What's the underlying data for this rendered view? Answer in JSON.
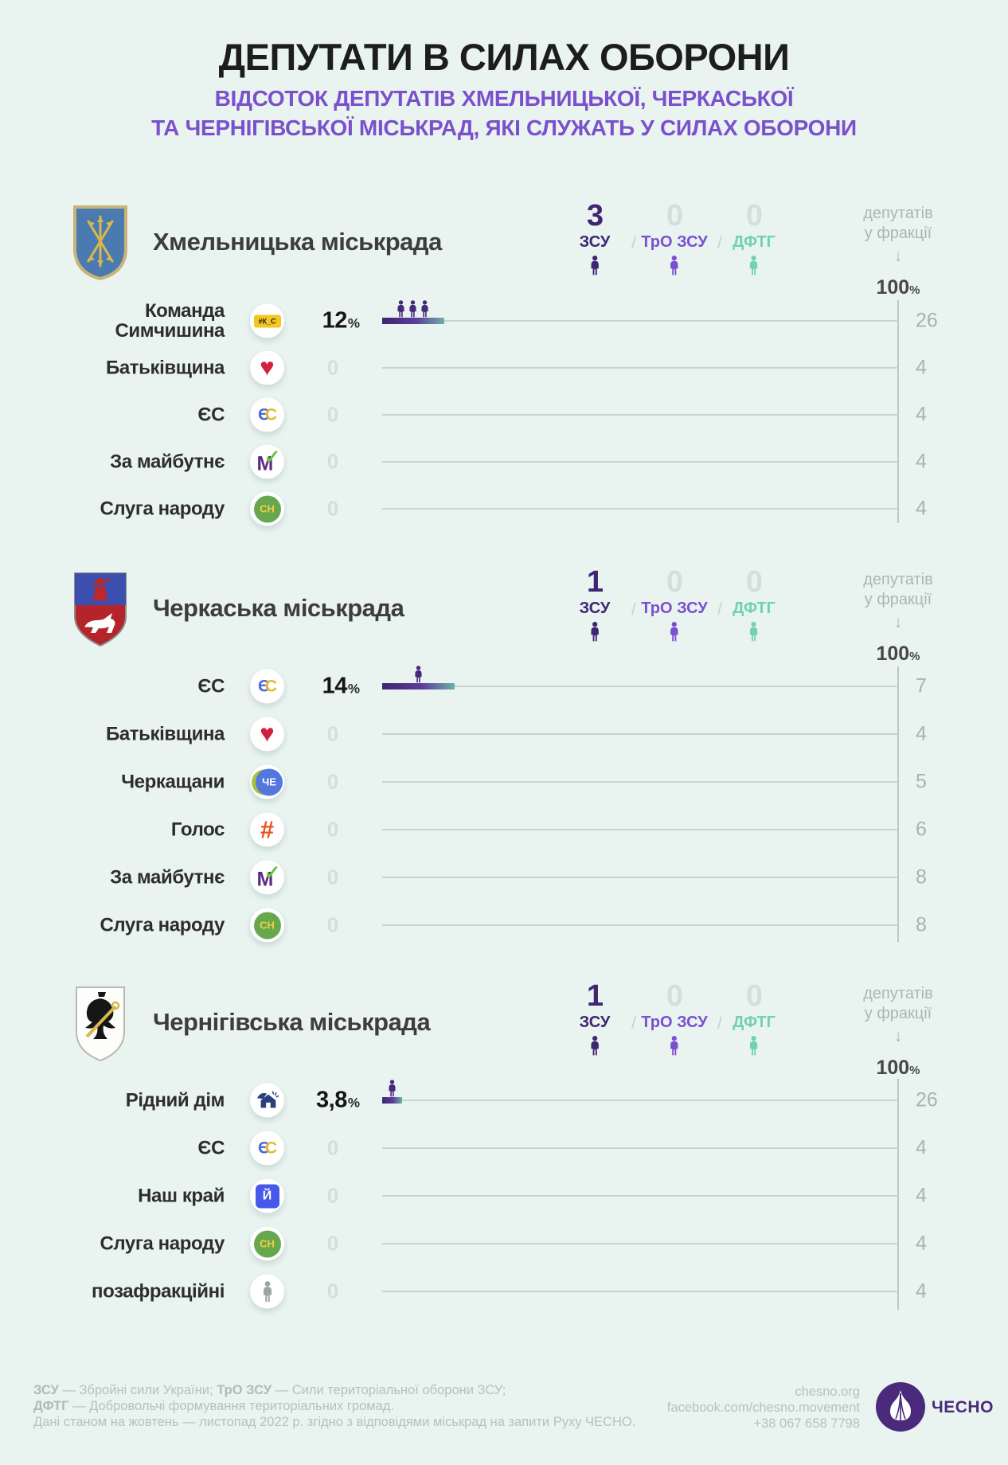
{
  "title": "ДЕПУТАТИ В СИЛАХ ОБОРОНИ",
  "subtitle": {
    "line1": "ВІДСОТОК ДЕПУТАТІВ ХМЕЛЬНИЦЬКОЇ, ЧЕРКАСЬКОЇ",
    "line2": "ТА ЧЕРНІГІВСЬКОЇ МІСЬКРАД, ЯКІ СЛУЖАТЬ У СИЛАХ ОБОРОНИ"
  },
  "branch_labels": {
    "zsu": "ЗСУ",
    "tro": "ТрО ЗСУ",
    "dftg": "ДФТГ",
    "sep": "/"
  },
  "axis": {
    "header_line1": "депутатів",
    "header_line2": "у фракції",
    "arrow": "↓",
    "max": "100",
    "pct": "%"
  },
  "logos": {
    "kc": "#К_С",
    "heart": "♥",
    "es_e": "Є",
    "es_c": "С",
    "zm_m": "М",
    "zm_check": "✓",
    "sn": "СН",
    "che": "ЧЕ",
    "holos": "#",
    "nk": "Й"
  },
  "colors": {
    "background": "#e9f4f1",
    "subtitle": "#7b50cc",
    "zsu": "#3f2572",
    "tro": "#7b4fd0",
    "dftg": "#72d1ae",
    "bar_gradient_start": "#3f2572",
    "bar_gradient_end": "#6fb0a8",
    "zero": "#d4dfdd",
    "count_gray": "#a5b3b1",
    "brand_purple": "#4b2a7b"
  },
  "sections": [
    {
      "name": "Хмельницька міськрада",
      "stats": {
        "zsu": "3",
        "tro": "0",
        "dftg": "0"
      },
      "rows": [
        {
          "party": "Команда\nСимчишина",
          "value": "12",
          "percent": 12,
          "serving": 3,
          "faction": "26"
        },
        {
          "party": "Батьківщина",
          "value": "0",
          "percent": 0,
          "serving": 0,
          "faction": "4"
        },
        {
          "party": "ЄС",
          "value": "0",
          "percent": 0,
          "serving": 0,
          "faction": "4"
        },
        {
          "party": "За майбутнє",
          "value": "0",
          "percent": 0,
          "serving": 0,
          "faction": "4"
        },
        {
          "party": "Слуга народу",
          "value": "0",
          "percent": 0,
          "serving": 0,
          "faction": "4"
        }
      ]
    },
    {
      "name": "Черкаська міськрада",
      "stats": {
        "zsu": "1",
        "tro": "0",
        "dftg": "0"
      },
      "rows": [
        {
          "party": "ЄС",
          "value": "14",
          "percent": 14,
          "serving": 1,
          "faction": "7"
        },
        {
          "party": "Батьківщина",
          "value": "0",
          "percent": 0,
          "serving": 0,
          "faction": "4"
        },
        {
          "party": "Черкащани",
          "value": "0",
          "percent": 0,
          "serving": 0,
          "faction": "5"
        },
        {
          "party": "Голос",
          "value": "0",
          "percent": 0,
          "serving": 0,
          "faction": "6"
        },
        {
          "party": "За майбутнє",
          "value": "0",
          "percent": 0,
          "serving": 0,
          "faction": "8"
        },
        {
          "party": "Слуга народу",
          "value": "0",
          "percent": 0,
          "serving": 0,
          "faction": "8"
        }
      ]
    },
    {
      "name": "Чернігівська міськрада",
      "stats": {
        "zsu": "1",
        "tro": "0",
        "dftg": "0"
      },
      "rows": [
        {
          "party": "Рідний дім",
          "value": "3,8",
          "percent": 3.8,
          "serving": 1,
          "faction": "26"
        },
        {
          "party": "ЄС",
          "value": "0",
          "percent": 0,
          "serving": 0,
          "faction": "4"
        },
        {
          "party": "Наш край",
          "value": "0",
          "percent": 0,
          "serving": 0,
          "faction": "4"
        },
        {
          "party": "Слуга народу",
          "value": "0",
          "percent": 0,
          "serving": 0,
          "faction": "4"
        },
        {
          "party": "позафракційні",
          "value": "0",
          "percent": 0,
          "serving": 0,
          "faction": "4"
        }
      ]
    }
  ],
  "footer": {
    "line1_term1": "ЗСУ",
    "line1_text1": " — Збройні сили України; ",
    "line1_term2": "ТрО ЗСУ",
    "line1_text2": " — Сили територіальної оборони ЗСУ;",
    "line2_term": "ДФТГ",
    "line2_text": " — Добровольчі формування територіальних громад.",
    "line3": "Дані станом на жовтень — листопад 2022 р. згідно з відповідями міськрад на запити Руху ЧЕСНО."
  },
  "contacts": {
    "web": "chesno.org",
    "fb": "facebook.com/chesno.movement",
    "phone": "+38 067 658 7798",
    "brand": "ЧЕСНО"
  },
  "chart_data": [
    {
      "type": "bar",
      "title": "Хмельницька міськрада",
      "categories": [
        "Команда Симчишина",
        "Батьківщина",
        "ЄС",
        "За майбутнє",
        "Слуга народу"
      ],
      "values": [
        12,
        0,
        0,
        0,
        0
      ],
      "unit": "%",
      "xlim": [
        0,
        100
      ],
      "faction_sizes": [
        26,
        4,
        4,
        4,
        4
      ],
      "serving_by_branch": {
        "ЗСУ": 3,
        "ТрО ЗСУ": 0,
        "ДФТГ": 0
      },
      "serving_per_category": [
        3,
        0,
        0,
        0,
        0
      ],
      "axis_label": "депутатів у фракції",
      "axis_max_label": "100%"
    },
    {
      "type": "bar",
      "title": "Черкаська міськрада",
      "categories": [
        "ЄС",
        "Батьківщина",
        "Черкащани",
        "Голос",
        "За майбутнє",
        "Слуга народу"
      ],
      "values": [
        14,
        0,
        0,
        0,
        0,
        0
      ],
      "unit": "%",
      "xlim": [
        0,
        100
      ],
      "faction_sizes": [
        7,
        4,
        5,
        6,
        8,
        8
      ],
      "serving_by_branch": {
        "ЗСУ": 1,
        "ТрО ЗСУ": 0,
        "ДФТГ": 0
      },
      "serving_per_category": [
        1,
        0,
        0,
        0,
        0,
        0
      ],
      "axis_label": "депутатів у фракції",
      "axis_max_label": "100%"
    },
    {
      "type": "bar",
      "title": "Чернігівська міськрада",
      "categories": [
        "Рідний дім",
        "ЄС",
        "Наш край",
        "Слуга народу",
        "позафракційні"
      ],
      "values": [
        3.8,
        0,
        0,
        0,
        0
      ],
      "unit": "%",
      "xlim": [
        0,
        100
      ],
      "faction_sizes": [
        26,
        4,
        4,
        4,
        4
      ],
      "serving_by_branch": {
        "ЗСУ": 1,
        "ТрО ЗСУ": 0,
        "ДФТГ": 0
      },
      "serving_per_category": [
        1,
        0,
        0,
        0,
        0
      ],
      "axis_label": "депутатів у фракції",
      "axis_max_label": "100%"
    }
  ]
}
